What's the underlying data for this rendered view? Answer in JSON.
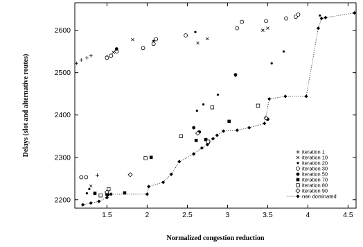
{
  "chart_data": {
    "type": "scatter",
    "xlabel": "Normalized congestion reduction",
    "ylabel": "Delays (slot and alternative routes)",
    "xlim": [
      1.1,
      4.6
    ],
    "ylim": [
      2180,
      2665
    ],
    "xticks": [
      1.5,
      2,
      2.5,
      3,
      3.5,
      4,
      4.5
    ],
    "xtick_labels": [
      "1.5",
      "2",
      "2.5",
      "3",
      "3.5",
      "4",
      "4.5"
    ],
    "yticks": [
      2200,
      2300,
      2400,
      2500,
      2600
    ],
    "ytick_labels": [
      "2200",
      "2300",
      "2400",
      "2500",
      "2600"
    ],
    "grid": false,
    "legend_position": "bottom-right",
    "series": [
      {
        "name": "iteration 1",
        "marker": "plus",
        "color": "#000000",
        "points": [
          [
            1.12,
            2522
          ],
          [
            1.18,
            2530
          ],
          [
            1.25,
            2535
          ],
          [
            1.3,
            2540
          ],
          [
            1.38,
            2258
          ]
        ]
      },
      {
        "name": "iteration 10",
        "marker": "cross",
        "color": "#000000",
        "points": [
          [
            1.58,
            2548
          ],
          [
            1.82,
            2578
          ],
          [
            2.63,
            2570
          ],
          [
            2.75,
            2580
          ],
          [
            3.44,
            2600
          ],
          [
            3.5,
            2605
          ],
          [
            1.3,
            2232
          ]
        ]
      },
      {
        "name": "iteration 20",
        "marker": "dot",
        "color": "#000000",
        "points": [
          [
            1.5,
            2538
          ],
          [
            2.08,
            2575
          ],
          [
            2.6,
            2596
          ],
          [
            2.62,
            2410
          ],
          [
            2.7,
            2425
          ],
          [
            2.88,
            2448
          ],
          [
            3.1,
            2493
          ],
          [
            3.55,
            2522
          ],
          [
            3.7,
            2550
          ],
          [
            4.15,
            2635
          ],
          [
            1.25,
            2215
          ],
          [
            1.28,
            2225
          ]
        ]
      },
      {
        "name": "iteration 30",
        "marker": "circle",
        "color": "#000000",
        "points": [
          [
            1.18,
            2253
          ],
          [
            1.24,
            2253
          ],
          [
            1.5,
            2535
          ],
          [
            1.55,
            2540
          ],
          [
            1.62,
            2550
          ],
          [
            1.95,
            2558
          ],
          [
            2.08,
            2568
          ],
          [
            2.11,
            2579
          ],
          [
            2.48,
            2588
          ],
          [
            3.12,
            2605
          ],
          [
            3.18,
            2620
          ],
          [
            3.48,
            2622
          ],
          [
            3.73,
            2628
          ],
          [
            3.85,
            2632
          ],
          [
            3.88,
            2637
          ]
        ]
      },
      {
        "name": "iteration 50",
        "marker": "filled-circle",
        "color": "#000000",
        "points": [
          [
            1.62,
            2556
          ],
          [
            2.58,
            2370
          ],
          [
            2.65,
            2360
          ],
          [
            3.1,
            2495
          ],
          [
            3.5,
            2390
          ],
          [
            1.51,
            2212
          ]
        ]
      },
      {
        "name": "iteration 70",
        "marker": "filled-square",
        "color": "#000000",
        "points": [
          [
            1.35,
            2215
          ],
          [
            2.05,
            2300
          ],
          [
            2.61,
            2340
          ],
          [
            2.73,
            2342
          ],
          [
            3.02,
            2385
          ],
          [
            1.72,
            2216
          ],
          [
            1.5,
            2213
          ]
        ]
      },
      {
        "name": "iteration 80",
        "marker": "square",
        "color": "#000000",
        "points": [
          [
            1.42,
            2210
          ],
          [
            1.98,
            2298
          ],
          [
            2.42,
            2350
          ],
          [
            2.76,
            2337
          ],
          [
            2.81,
            2418
          ],
          [
            3.38,
            2422
          ],
          [
            1.52,
            2225
          ]
        ]
      },
      {
        "name": "iteration 90",
        "marker": "diamond",
        "color": "#000000",
        "points": [
          [
            1.79,
            2259
          ],
          [
            2.63,
            2357
          ],
          [
            3.48,
            2393
          ],
          [
            1.5,
            2218
          ]
        ]
      },
      {
        "name": "non dominated",
        "marker": "filled-diamond-line",
        "color": "#000000",
        "points": [
          [
            1.2,
            2188
          ],
          [
            1.3,
            2192
          ],
          [
            1.4,
            2196
          ],
          [
            1.5,
            2205
          ],
          [
            1.55,
            2213
          ],
          [
            2.0,
            2213
          ],
          [
            2.02,
            2231
          ],
          [
            2.2,
            2241
          ],
          [
            2.3,
            2260
          ],
          [
            2.4,
            2290
          ],
          [
            2.58,
            2308
          ],
          [
            2.68,
            2322
          ],
          [
            2.75,
            2330
          ],
          [
            2.82,
            2344
          ],
          [
            2.87,
            2352
          ],
          [
            2.95,
            2362
          ],
          [
            3.12,
            2364
          ],
          [
            3.27,
            2370
          ],
          [
            3.46,
            2380
          ],
          [
            3.52,
            2438
          ],
          [
            3.72,
            2444
          ],
          [
            3.98,
            2444
          ],
          [
            4.13,
            2605
          ],
          [
            4.17,
            2628
          ],
          [
            4.22,
            2630
          ],
          [
            4.58,
            2641
          ]
        ]
      }
    ]
  }
}
